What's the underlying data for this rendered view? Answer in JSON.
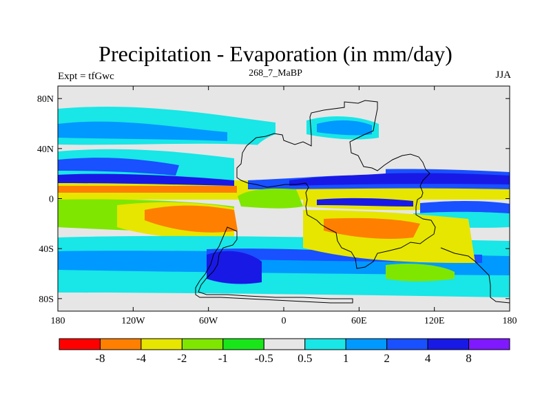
{
  "title": "Precipitation - Evaporation (in mm/day)",
  "left_label": "Expt = tfGwc",
  "center_label": "268_7_MaBP",
  "right_label": "JJA",
  "lat_ticks": [
    {
      "value": 80,
      "label": "80N"
    },
    {
      "value": 40,
      "label": "40N"
    },
    {
      "value": 0,
      "label": "0"
    },
    {
      "value": -40,
      "label": "40S"
    },
    {
      "value": -80,
      "label": "80S"
    }
  ],
  "lon_ticks": [
    {
      "value": -180,
      "label": "180"
    },
    {
      "value": -120,
      "label": "120W"
    },
    {
      "value": -60,
      "label": "60W"
    },
    {
      "value": 0,
      "label": "0"
    },
    {
      "value": 60,
      "label": "60E"
    },
    {
      "value": 120,
      "label": "120E"
    },
    {
      "value": 180,
      "label": "180"
    }
  ],
  "colorbar": {
    "colors": [
      "#ff0000",
      "#ff7f00",
      "#e6e600",
      "#7fe600",
      "#19e619",
      "#e6e6e6",
      "#19e6e6",
      "#0099ff",
      "#1950ff",
      "#1919e6",
      "#7f19ff"
    ],
    "labels": [
      "-8",
      "-4",
      "-2",
      "-1",
      "-0.5",
      "0.5",
      "1",
      "2",
      "4",
      "8"
    ]
  },
  "colors": {
    "neutral": "#e6e6e6",
    "light_cyan": "#19e6e6",
    "light_blue": "#0099ff",
    "blue": "#1950ff",
    "dark_blue": "#1919e6",
    "purple": "#7f19ff",
    "yellow": "#e6e600",
    "orange": "#ff7f00",
    "light_green": "#7fe600",
    "green": "#19e619"
  }
}
